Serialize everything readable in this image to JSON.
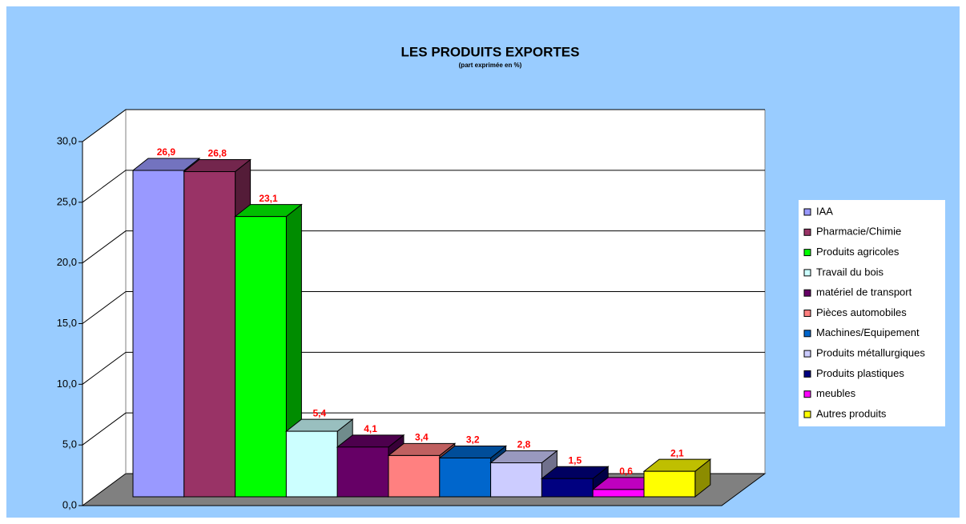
{
  "chart_data": {
    "type": "bar3d",
    "title": "LES PRODUITS EXPORTES",
    "subtitle": "(part exprimée en %)",
    "ylim": [
      0,
      30
    ],
    "yticks": [
      {
        "value": 0,
        "label": "0,0"
      },
      {
        "value": 5,
        "label": "5,0"
      },
      {
        "value": 10,
        "label": "10,0"
      },
      {
        "value": 15,
        "label": "15,0"
      },
      {
        "value": 20,
        "label": "20,0"
      },
      {
        "value": 25,
        "label": "25,0"
      },
      {
        "value": 30,
        "label": "30,0"
      }
    ],
    "grid": true,
    "legend": "right",
    "series": [
      {
        "name": "IAA",
        "color": "#9999ff",
        "values": [
          26.9
        ],
        "value_labels": [
          "26,9"
        ]
      },
      {
        "name": "Pharmacie/Chimie",
        "color": "#993366",
        "values": [
          26.8
        ],
        "value_labels": [
          "26,8"
        ]
      },
      {
        "name": "Produits agricoles",
        "color": "#00ff00",
        "values": [
          23.1
        ],
        "value_labels": [
          "23,1"
        ]
      },
      {
        "name": "Travail du bois",
        "color": "#ccffff",
        "values": [
          5.4
        ],
        "value_labels": [
          "5,4"
        ]
      },
      {
        "name": "matériel de transport",
        "color": "#660066",
        "values": [
          4.1
        ],
        "value_labels": [
          "4,1"
        ]
      },
      {
        "name": "Pièces automobiles",
        "color": "#ff8080",
        "values": [
          3.4
        ],
        "value_labels": [
          "3,4"
        ]
      },
      {
        "name": "Machines/Equipement",
        "color": "#0066cc",
        "values": [
          3.2
        ],
        "value_labels": [
          "3,2"
        ]
      },
      {
        "name": "Produits métallurgiques",
        "color": "#ccccff",
        "values": [
          2.8
        ],
        "value_labels": [
          "2,8"
        ]
      },
      {
        "name": "Produits plastiques",
        "color": "#000080",
        "values": [
          1.5
        ],
        "value_labels": [
          "1,5"
        ]
      },
      {
        "name": "meubles",
        "color": "#ff00ff",
        "values": [
          0.6
        ],
        "value_labels": [
          "0,6"
        ]
      },
      {
        "name": "Autres produits",
        "color": "#ffff00",
        "values": [
          2.1
        ],
        "value_labels": [
          "2,1"
        ]
      }
    ]
  }
}
